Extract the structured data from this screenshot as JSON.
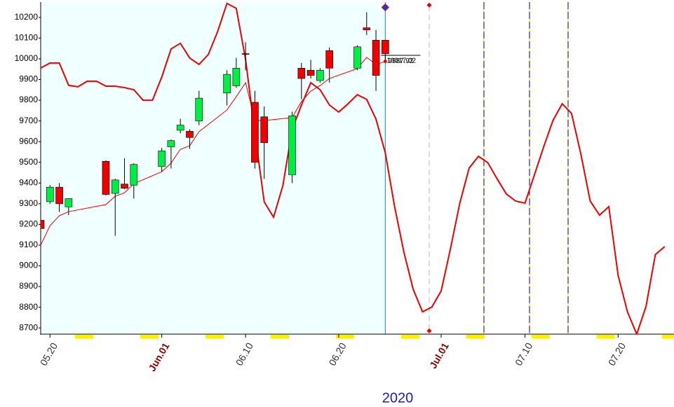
{
  "chart_data": {
    "type": "candlestick",
    "year_label": "2020",
    "xlim": [
      "2020-05-19",
      "2020-07-26"
    ],
    "ylim": [
      8670,
      10274
    ],
    "yticks": [
      8700,
      8800,
      8900,
      9000,
      9100,
      9200,
      9300,
      9400,
      9500,
      9600,
      9700,
      9800,
      9900,
      10000,
      10100,
      10200
    ],
    "xticks": [
      {
        "value": "2020-05-20",
        "label": "05.20",
        "color": "#333333"
      },
      {
        "value": "2020-06-01",
        "label": "Jun.01",
        "color": "#8b0000"
      },
      {
        "value": "2020-06-10",
        "label": "06.10",
        "color": "#333333"
      },
      {
        "value": "2020-06-20",
        "label": "06.20",
        "color": "#333333"
      },
      {
        "value": "2020-07-01",
        "label": "Jul.01",
        "color": "#8b0000"
      },
      {
        "value": "2020-07-10",
        "label": "07.10",
        "color": "#333333"
      },
      {
        "value": "2020-07-20",
        "label": "07.20",
        "color": "#333333"
      }
    ],
    "history_end": "2020-06-25",
    "history_color": "#f0ffff",
    "candles": {
      "up_color": "#00ee44",
      "down_color": "#ee0000",
      "x": [
        "2020-05-19",
        "2020-05-20",
        "2020-05-21",
        "2020-05-22",
        "2020-05-26",
        "2020-05-27",
        "2020-05-28",
        "2020-05-29",
        "2020-06-01",
        "2020-06-02",
        "2020-06-03",
        "2020-06-04",
        "2020-06-05",
        "2020-06-08",
        "2020-06-09",
        "2020-06-10",
        "2020-06-11",
        "2020-06-12",
        "2020-06-15",
        "2020-06-16",
        "2020-06-17",
        "2020-06-18",
        "2020-06-19",
        "2020-06-22",
        "2020-06-23",
        "2020-06-24",
        "2020-06-25"
      ],
      "open": [
        9220,
        9310,
        9380,
        9285,
        9505,
        9350,
        9395,
        9390,
        9480,
        9575,
        9655,
        9650,
        9700,
        9835,
        9870,
        10025,
        9790,
        9720,
        9440,
        9955,
        9945,
        9895,
        10040,
        9955,
        10150,
        10090,
        10090
      ],
      "high": [
        9310,
        9390,
        9400,
        9325,
        9510,
        9420,
        9520,
        9495,
        9570,
        9610,
        9710,
        9660,
        9845,
        9945,
        10005,
        10080,
        9845,
        9770,
        9745,
        9980,
        9995,
        9955,
        10055,
        10065,
        10225,
        10140,
        10090
      ],
      "low": [
        9170,
        9300,
        9260,
        9245,
        9340,
        9145,
        9370,
        9325,
        9455,
        9470,
        9640,
        9565,
        9680,
        9775,
        9860,
        9945,
        9470,
        9420,
        9400,
        9805,
        9905,
        9885,
        9885,
        9945,
        10115,
        9845,
        9995
      ],
      "close": [
        9180,
        9380,
        9300,
        9325,
        9345,
        9415,
        9375,
        9490,
        9555,
        9605,
        9680,
        9620,
        9810,
        9925,
        9955,
        10022,
        9500,
        9595,
        9725,
        9905,
        9920,
        9945,
        9955,
        10058,
        10140,
        9920,
        10025
      ]
    },
    "lines": [
      {
        "color": "#ee0000",
        "width": 1,
        "values": [
          9100,
          9194,
          9242,
          9262,
          9296,
          9336,
          9353,
          9397,
          9455,
          9496,
          9563,
          9580,
          9648,
          9753,
          9817,
          9885,
          9702,
          9702,
          9716,
          9794,
          9844,
          9871,
          9905,
          9953,
          10007,
          9973,
          9987
        ]
      },
      {
        "color": "#ee0000",
        "width": 2,
        "x": [
          "2020-05-19",
          "2020-05-20",
          "2020-05-21",
          "2020-05-22",
          "2020-05-23",
          "2020-05-24",
          "2020-05-25",
          "2020-05-26",
          "2020-05-27",
          "2020-05-28",
          "2020-05-29",
          "2020-05-30",
          "2020-05-31",
          "2020-06-01",
          "2020-06-02",
          "2020-06-03",
          "2020-06-04",
          "2020-06-05",
          "2020-06-06",
          "2020-06-07",
          "2020-06-08",
          "2020-06-09",
          "2020-06-10",
          "2020-06-11",
          "2020-06-12",
          "2020-06-13",
          "2020-06-14",
          "2020-06-15",
          "2020-06-16",
          "2020-06-17",
          "2020-06-18",
          "2020-06-19",
          "2020-06-20",
          "2020-06-21",
          "2020-06-22",
          "2020-06-23",
          "2020-06-24",
          "2020-06-25",
          "2020-06-26",
          "2020-06-27",
          "2020-06-28",
          "2020-06-29",
          "2020-06-30",
          "2020-07-01",
          "2020-07-02",
          "2020-07-03",
          "2020-07-04",
          "2020-07-05",
          "2020-07-06",
          "2020-07-07",
          "2020-07-08",
          "2020-07-09",
          "2020-07-10",
          "2020-07-11",
          "2020-07-12",
          "2020-07-13",
          "2020-07-14",
          "2020-07-15",
          "2020-07-16",
          "2020-07-17",
          "2020-07-18",
          "2020-07-19",
          "2020-07-20",
          "2020-07-21",
          "2020-07-22",
          "2020-07-23",
          "2020-07-24",
          "2020-07-25"
        ],
        "values": [
          9956,
          9980,
          9980,
          9872,
          9865,
          9892,
          9892,
          9868,
          9868,
          9861,
          9851,
          9800,
          9800,
          9912,
          10048,
          10075,
          10004,
          9973,
          10021,
          10132,
          10268,
          10244,
          9997,
          9641,
          9309,
          9235,
          9387,
          9658,
          9777,
          9885,
          9851,
          9777,
          9743,
          9783,
          9827,
          9804,
          9709,
          9546,
          9286,
          9066,
          8886,
          8778,
          8801,
          8879,
          9083,
          9303,
          9472,
          9529,
          9499,
          9421,
          9347,
          9313,
          9303,
          9438,
          9574,
          9702,
          9783,
          9736,
          9540,
          9313,
          9245,
          9286,
          8954,
          8778,
          8670,
          8805,
          9055,
          9093
        ]
      }
    ],
    "price_line": {
      "value": 10017.02,
      "label": "10017.02"
    },
    "ma_last": {
      "value": 9987.92,
      "label": "9987.92"
    }
  }
}
